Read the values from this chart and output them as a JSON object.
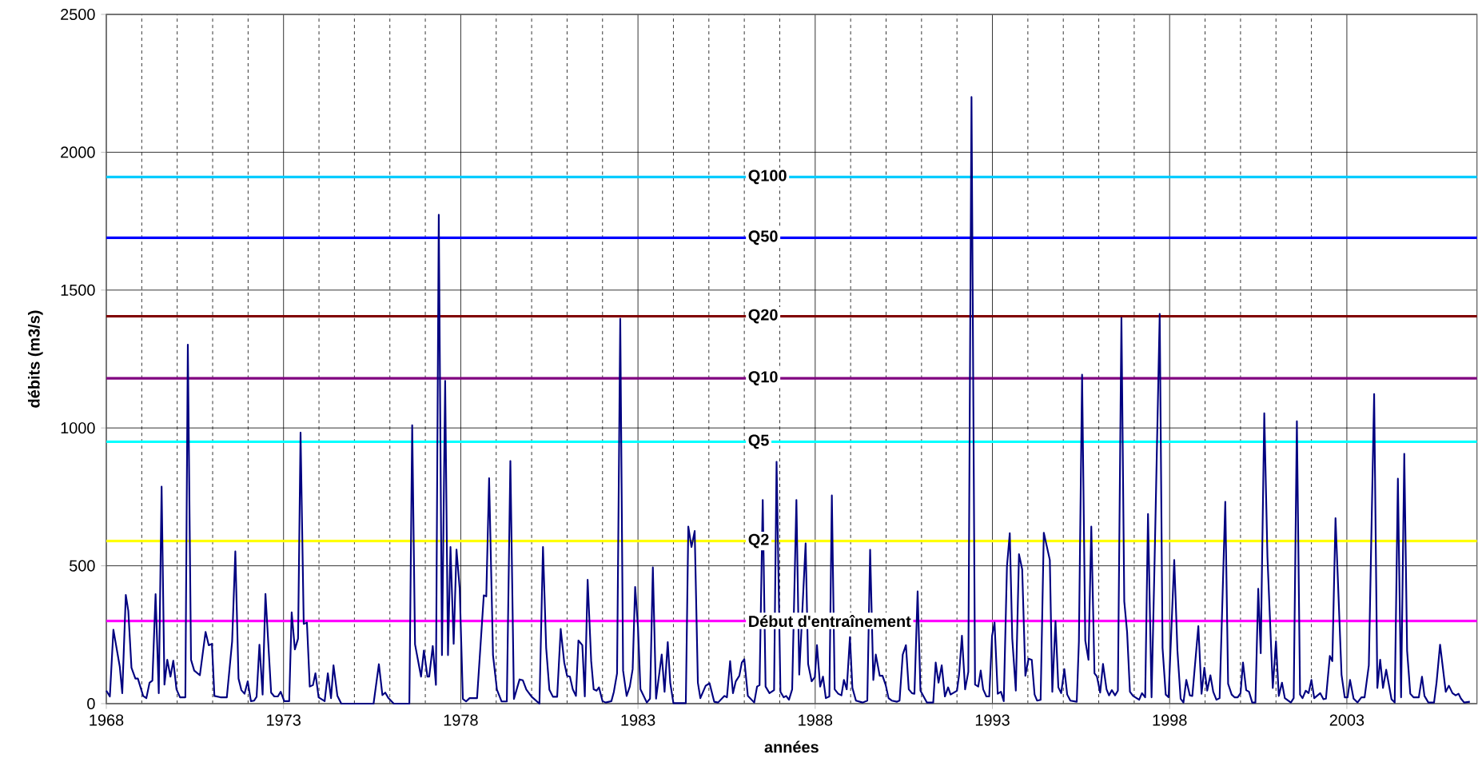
{
  "chart_data": {
    "type": "line",
    "xlabel": "années",
    "ylabel": "débits (m3/s)",
    "xlim": [
      1968,
      2006.67
    ],
    "ylim": [
      0,
      2500
    ],
    "xticks": [
      1968,
      1973,
      1978,
      1983,
      1988,
      1993,
      1998,
      2003
    ],
    "yticks": [
      0,
      500,
      1000,
      1500,
      2000,
      2500
    ],
    "grid": true,
    "marker": "none",
    "line_style": "solid",
    "ref_lines": [
      {
        "axis": "y",
        "value": 1910,
        "label": "Q100",
        "color": "#00ccff"
      },
      {
        "axis": "y",
        "value": 1690,
        "label": "Q50",
        "color": "#0000ff"
      },
      {
        "axis": "y",
        "value": 1405,
        "label": "Q20",
        "color": "#800000"
      },
      {
        "axis": "y",
        "value": 1180,
        "label": "Q10",
        "color": "#800080"
      },
      {
        "axis": "y",
        "value": 950,
        "label": "Q5",
        "color": "#00ffff"
      },
      {
        "axis": "y",
        "value": 590,
        "label": "Q2",
        "color": "#ffff00"
      },
      {
        "axis": "y",
        "value": 300,
        "label": "Début d'entraînement",
        "color": "#ff00ff"
      }
    ],
    "series": [
      {
        "color": "#000080",
        "x": [
          1968.0,
          1968.1,
          1968.2,
          1968.38,
          1968.45,
          1968.55,
          1968.62,
          1968.71,
          1968.82,
          1968.89,
          1969.04,
          1969.13,
          1969.22,
          1969.3,
          1969.39,
          1969.48,
          1969.56,
          1969.64,
          1969.72,
          1969.81,
          1969.89,
          1969.98,
          1970.08,
          1970.23,
          1970.3,
          1970.39,
          1970.48,
          1970.64,
          1970.8,
          1970.89,
          1970.98,
          1971.05,
          1971.22,
          1971.4,
          1971.55,
          1971.64,
          1971.73,
          1971.81,
          1971.9,
          1971.99,
          1972.08,
          1972.17,
          1972.24,
          1972.32,
          1972.41,
          1972.49,
          1972.65,
          1972.74,
          1972.84,
          1972.92,
          1973.02,
          1973.16,
          1973.23,
          1973.32,
          1973.41,
          1973.48,
          1973.57,
          1973.66,
          1973.74,
          1973.83,
          1973.9,
          1973.99,
          1974.16,
          1974.25,
          1974.34,
          1974.41,
          1974.52,
          1974.63,
          1975.54,
          1975.69,
          1975.79,
          1975.87,
          1975.96,
          1976.11,
          1976.55,
          1976.63,
          1976.71,
          1976.88,
          1976.96,
          1977.06,
          1977.11,
          1977.21,
          1977.3,
          1977.38,
          1977.47,
          1977.56,
          1977.64,
          1977.71,
          1977.8,
          1977.88,
          1977.97,
          1978.06,
          1978.15,
          1978.25,
          1978.46,
          1978.65,
          1978.72,
          1978.8,
          1978.91,
          1979.02,
          1979.15,
          1979.3,
          1979.4,
          1979.5,
          1979.66,
          1979.75,
          1979.85,
          1980.0,
          1980.22,
          1980.32,
          1980.41,
          1980.5,
          1980.6,
          1980.72,
          1980.82,
          1980.92,
          1981.0,
          1981.08,
          1981.16,
          1981.25,
          1981.32,
          1981.43,
          1981.5,
          1981.58,
          1981.68,
          1981.75,
          1981.83,
          1981.9,
          1982.0,
          1982.09,
          1982.25,
          1982.32,
          1982.41,
          1982.5,
          1982.58,
          1982.68,
          1982.77,
          1982.85,
          1982.92,
          1983.0,
          1983.07,
          1983.25,
          1983.34,
          1983.42,
          1983.51,
          1983.67,
          1983.75,
          1983.84,
          1983.91,
          1984.0,
          1984.35,
          1984.42,
          1984.51,
          1984.6,
          1984.69,
          1984.76,
          1984.91,
          1985.02,
          1985.15,
          1985.26,
          1985.44,
          1985.51,
          1985.6,
          1985.68,
          1985.76,
          1985.86,
          1985.93,
          1986.0,
          1986.1,
          1986.28,
          1986.36,
          1986.43,
          1986.52,
          1986.6,
          1986.71,
          1986.84,
          1986.91,
          1987.02,
          1987.11,
          1987.18,
          1987.26,
          1987.35,
          1987.47,
          1987.55,
          1987.73,
          1987.8,
          1987.9,
          1987.99,
          1988.05,
          1988.14,
          1988.22,
          1988.3,
          1988.4,
          1988.47,
          1988.55,
          1988.65,
          1988.74,
          1988.81,
          1988.89,
          1988.98,
          1989.05,
          1989.15,
          1989.34,
          1989.47,
          1989.55,
          1989.64,
          1989.71,
          1989.82,
          1989.9,
          1989.99,
          1990.07,
          1990.16,
          1990.31,
          1990.38,
          1990.47,
          1990.56,
          1990.64,
          1990.73,
          1990.8,
          1990.89,
          1990.97,
          1991.15,
          1991.33,
          1991.4,
          1991.48,
          1991.57,
          1991.66,
          1991.75,
          1991.82,
          1992.0,
          1992.06,
          1992.14,
          1992.23,
          1992.32,
          1992.41,
          1992.51,
          1992.6,
          1992.67,
          1992.74,
          1992.83,
          1992.91,
          1992.99,
          1993.06,
          1993.15,
          1993.24,
          1993.32,
          1993.41,
          1993.49,
          1993.56,
          1993.66,
          1993.75,
          1993.84,
          1993.93,
          1994.02,
          1994.11,
          1994.19,
          1994.26,
          1994.36,
          1994.45,
          1994.62,
          1994.69,
          1994.78,
          1994.86,
          1994.94,
          1995.03,
          1995.11,
          1995.2,
          1995.38,
          1995.44,
          1995.53,
          1995.62,
          1995.71,
          1995.79,
          1995.88,
          1995.95,
          1996.04,
          1996.12,
          1996.22,
          1996.29,
          1996.37,
          1996.46,
          1996.54,
          1996.64,
          1996.72,
          1996.8,
          1996.88,
          1996.97,
          1997.14,
          1997.22,
          1997.31,
          1997.39,
          1997.49,
          1997.57,
          1997.72,
          1997.8,
          1997.89,
          1997.97,
          1998.13,
          1998.22,
          1998.31,
          1998.39,
          1998.47,
          1998.57,
          1998.64,
          1998.81,
          1998.9,
          1998.98,
          1999.06,
          1999.15,
          1999.23,
          1999.32,
          1999.41,
          1999.57,
          1999.65,
          1999.75,
          1999.83,
          1999.92,
          2000.0,
          2000.07,
          2000.16,
          2000.24,
          2000.33,
          2000.42,
          2000.5,
          2000.57,
          2000.67,
          2000.76,
          2000.91,
          2001.0,
          2001.08,
          2001.17,
          2001.25,
          2001.42,
          2001.5,
          2001.59,
          2001.68,
          2001.75,
          2001.84,
          2001.92,
          2002.0,
          2002.08,
          2002.25,
          2002.34,
          2002.41,
          2002.52,
          2002.59,
          2002.68,
          2002.85,
          2002.94,
          2003.02,
          2003.09,
          2003.19,
          2003.3,
          2003.41,
          2003.5,
          2003.62,
          2003.77,
          2003.86,
          2003.94,
          2004.02,
          2004.11,
          2004.26,
          2004.35,
          2004.44,
          2004.53,
          2004.62,
          2004.7,
          2004.79,
          2004.88,
          2005.03,
          2005.12,
          2005.19,
          2005.3,
          2005.46,
          2005.53,
          2005.63,
          2005.79,
          2005.88,
          2005.98,
          2006.07,
          2006.15,
          2006.22,
          2006.31,
          2006.47
        ],
        "values": [
          47,
          26,
          268,
          134,
          38,
          394,
          337,
          130,
          91,
          91,
          28,
          20,
          76,
          84,
          397,
          38,
          787,
          69,
          159,
          98,
          156,
          52,
          23,
          23,
          1302,
          159,
          120,
          103,
          260,
          212,
          217,
          28,
          23,
          23,
          226,
          552,
          91,
          49,
          36,
          81,
          9,
          11,
          25,
          214,
          33,
          398,
          40,
          26,
          26,
          43,
          9,
          9,
          331,
          197,
          236,
          983,
          289,
          294,
          62,
          67,
          110,
          23,
          9,
          110,
          20,
          139,
          28,
          0,
          0,
          143,
          31,
          40,
          20,
          0,
          0,
          1010,
          215,
          98,
          193,
          98,
          98,
          209,
          68,
          1773,
          176,
          1171,
          176,
          568,
          217,
          559,
          417,
          17,
          8,
          20,
          20,
          393,
          389,
          818,
          176,
          51,
          8,
          8,
          880,
          17,
          88,
          85,
          51,
          25,
          0,
          568,
          202,
          51,
          25,
          25,
          271,
          149,
          101,
          98,
          52,
          28,
          229,
          212,
          26,
          449,
          154,
          52,
          47,
          59,
          9,
          4,
          9,
          43,
          110,
          1396,
          120,
          28,
          62,
          125,
          423,
          279,
          52,
          4,
          18,
          494,
          18,
          178,
          43,
          223,
          76,
          2,
          2,
          642,
          568,
          626,
          76,
          20,
          65,
          74,
          7,
          4,
          28,
          23,
          154,
          38,
          81,
          101,
          149,
          161,
          28,
          4,
          62,
          67,
          739,
          62,
          38,
          49,
          877,
          43,
          23,
          28,
          14,
          52,
          739,
          105,
          581,
          144,
          81,
          96,
          212,
          62,
          98,
          20,
          26,
          755,
          52,
          36,
          30,
          86,
          52,
          241,
          57,
          11,
          4,
          11,
          558,
          86,
          178,
          101,
          101,
          67,
          20,
          11,
          7,
          11,
          178,
          212,
          52,
          38,
          36,
          407,
          47,
          4,
          4,
          149,
          76,
          139,
          26,
          59,
          33,
          47,
          105,
          246,
          52,
          115,
          2200,
          69,
          62,
          120,
          52,
          26,
          26,
          246,
          294,
          36,
          43,
          9,
          497,
          618,
          236,
          47,
          542,
          487,
          101,
          163,
          159,
          33,
          11,
          14,
          620,
          521,
          43,
          299,
          59,
          38,
          125,
          33,
          11,
          7,
          226,
          1193,
          229,
          159,
          642,
          110,
          98,
          40,
          144,
          52,
          30,
          49,
          30,
          47,
          1399,
          371,
          260,
          43,
          28,
          14,
          38,
          23,
          688,
          23,
          483,
          1414,
          202,
          33,
          23,
          521,
          192,
          18,
          4,
          86,
          30,
          28,
          281,
          36,
          130,
          47,
          103,
          43,
          14,
          20,
          732,
          72,
          33,
          23,
          23,
          38,
          149,
          49,
          43,
          4,
          4,
          417,
          183,
          1053,
          531,
          57,
          226,
          28,
          76,
          20,
          4,
          20,
          1024,
          33,
          20,
          47,
          38,
          86,
          20,
          38,
          16,
          18,
          173,
          154,
          673,
          105,
          23,
          23,
          86,
          18,
          4,
          23,
          23,
          139,
          1123,
          57,
          159,
          57,
          123,
          16,
          4,
          816,
          23,
          906,
          192,
          36,
          23,
          23,
          98,
          28,
          4,
          4,
          76,
          214,
          43,
          65,
          38,
          30,
          36,
          18,
          4,
          7
        ]
      }
    ]
  }
}
